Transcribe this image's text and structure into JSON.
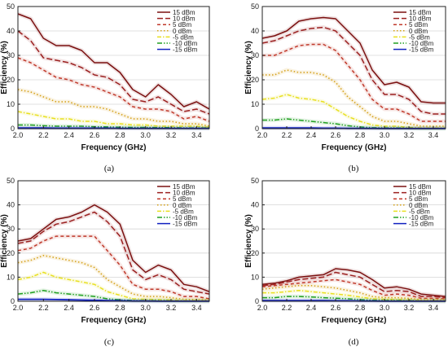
{
  "chart_data": [
    {
      "type": "line",
      "panel_label": "(a)",
      "xlabel": "Frequency (GHz)",
      "ylabel": "Efficiency (%)",
      "xlim": [
        2.0,
        3.5
      ],
      "ylim": [
        0,
        50
      ],
      "xticks": [
        "2.0",
        "2.2",
        "2.4",
        "2.6",
        "2.8",
        "3.0",
        "3.2",
        "3.4"
      ],
      "yticks": [
        "0",
        "10",
        "20",
        "30",
        "40",
        "50"
      ],
      "grid": true,
      "legend_position": "top-right",
      "x": [
        2.0,
        2.1,
        2.2,
        2.3,
        2.4,
        2.5,
        2.6,
        2.7,
        2.8,
        2.9,
        3.0,
        3.1,
        3.2,
        3.3,
        3.4,
        3.5
      ],
      "series": [
        {
          "name": "15 dBm",
          "color": "#7b1010",
          "dash": "solid",
          "values": [
            47,
            45,
            37,
            34,
            34,
            32,
            27,
            27,
            23,
            16,
            13,
            18,
            14,
            9,
            11,
            8
          ]
        },
        {
          "name": "10 dBm",
          "color": "#9b2020",
          "dash": "longdash",
          "values": [
            40,
            36,
            29,
            28,
            27,
            25,
            22,
            21,
            18,
            12,
            11,
            13,
            10,
            7,
            8,
            6
          ]
        },
        {
          "name": "5 dBm",
          "color": "#c0392b",
          "dash": "dash",
          "values": [
            29,
            27,
            24,
            21,
            20,
            18,
            17,
            15,
            13,
            9,
            8,
            8,
            7,
            4,
            5,
            3
          ]
        },
        {
          "name": "0 dBm",
          "color": "#d4a017",
          "dash": "dot",
          "values": [
            16,
            15,
            13,
            11,
            11,
            9,
            9,
            8,
            6,
            4,
            4,
            3,
            3,
            2,
            2,
            1
          ]
        },
        {
          "name": "-5 dBm",
          "color": "#e8e020",
          "dash": "dashdot",
          "values": [
            7,
            6,
            5,
            4,
            4,
            3,
            3,
            2,
            2,
            1.5,
            1.5,
            1,
            1,
            1,
            1,
            0.5
          ]
        },
        {
          "name": "-10 dBm",
          "color": "#20a020",
          "dash": "dashdotdot",
          "values": [
            1.5,
            1.5,
            1.2,
            1,
            1,
            1,
            0.8,
            0.7,
            0.6,
            0.5,
            0.5,
            0.4,
            0.4,
            0.3,
            0.3,
            0.3
          ]
        },
        {
          "name": "-15 dBm",
          "color": "#1020c0",
          "dash": "solid",
          "values": [
            0.3,
            0.3,
            0.3,
            0.2,
            0.2,
            0.2,
            0.2,
            0.2,
            0.1,
            0.1,
            0.1,
            0.1,
            0.1,
            0.1,
            0.1,
            0.1
          ]
        }
      ]
    },
    {
      "type": "line",
      "panel_label": "(b)",
      "xlabel": "Frequency (GHz)",
      "ylabel": "Efficiency (%)",
      "xlim": [
        2.0,
        3.5
      ],
      "ylim": [
        0,
        50
      ],
      "xticks": [
        "2.0",
        "2.2",
        "2.4",
        "2.6",
        "2.8",
        "3.0",
        "3.2",
        "3.4"
      ],
      "yticks": [
        "0",
        "10",
        "20",
        "30",
        "40",
        "50"
      ],
      "grid": true,
      "legend_position": "top-right",
      "x": [
        2.0,
        2.1,
        2.2,
        2.3,
        2.4,
        2.5,
        2.6,
        2.7,
        2.8,
        2.9,
        3.0,
        3.1,
        3.2,
        3.3,
        3.4,
        3.5
      ],
      "series": [
        {
          "name": "15 dBm",
          "color": "#7b1010",
          "dash": "solid",
          "values": [
            37,
            38,
            40,
            44,
            45,
            45.5,
            45,
            40,
            35,
            24,
            18,
            19,
            17,
            11,
            10.5,
            10.5
          ]
        },
        {
          "name": "10 dBm",
          "color": "#9b2020",
          "dash": "longdash",
          "values": [
            35,
            36,
            38,
            40,
            41,
            41.5,
            40,
            35,
            30,
            20,
            14,
            14,
            12,
            7,
            6,
            6
          ]
        },
        {
          "name": "5 dBm",
          "color": "#c0392b",
          "dash": "dash",
          "values": [
            30,
            30,
            32,
            34,
            34.5,
            34.5,
            32,
            26,
            20,
            12,
            8,
            8,
            6,
            3,
            3,
            3
          ]
        },
        {
          "name": "0 dBm",
          "color": "#d4a017",
          "dash": "dot",
          "values": [
            22,
            22,
            24,
            23,
            23,
            22,
            19,
            13,
            9,
            5,
            3,
            3,
            2,
            1,
            1,
            1
          ]
        },
        {
          "name": "-5 dBm",
          "color": "#e8e020",
          "dash": "dashdot",
          "values": [
            12,
            12.5,
            14,
            12.5,
            12,
            11,
            8,
            5,
            3,
            1.5,
            1,
            1,
            0.5,
            0.3,
            0.3,
            0.3
          ]
        },
        {
          "name": "-10 dBm",
          "color": "#20a020",
          "dash": "dashdotdot",
          "values": [
            3.5,
            3.5,
            4,
            3.5,
            3,
            2.5,
            2,
            1.2,
            0.7,
            0.4,
            0.3,
            0.3,
            0.2,
            0.1,
            0.1,
            0.1
          ]
        },
        {
          "name": "-15 dBm",
          "color": "#1020c0",
          "dash": "solid",
          "values": [
            0.3,
            0.3,
            0.3,
            0.3,
            0.3,
            0.2,
            0.2,
            0.1,
            0.1,
            0.1,
            0.05,
            0.05,
            0.05,
            0.05,
            0.05,
            0.05
          ]
        }
      ]
    },
    {
      "type": "line",
      "panel_label": "(c)",
      "xlabel": "Frequency (GHz)",
      "ylabel": "Efficiency (%)",
      "xlim": [
        2.0,
        3.5
      ],
      "ylim": [
        0,
        50
      ],
      "xticks": [
        "2.0",
        "2.2",
        "2.4",
        "2.6",
        "2.8",
        "3.0",
        "3.2",
        "3.4"
      ],
      "yticks": [
        "0",
        "10",
        "20",
        "30",
        "40",
        "50"
      ],
      "grid": true,
      "legend_position": "top-right",
      "x": [
        2.0,
        2.1,
        2.2,
        2.3,
        2.4,
        2.5,
        2.6,
        2.7,
        2.8,
        2.9,
        3.0,
        3.1,
        3.2,
        3.3,
        3.4,
        3.5
      ],
      "series": [
        {
          "name": "15 dBm",
          "color": "#7b1010",
          "dash": "solid",
          "values": [
            25,
            26,
            30,
            34,
            35,
            37,
            40,
            37,
            32,
            17,
            12,
            15,
            13,
            7,
            6,
            4
          ]
        },
        {
          "name": "10 dBm",
          "color": "#9b2020",
          "dash": "longdash",
          "values": [
            24,
            25,
            29,
            32,
            33,
            35,
            37,
            33,
            27,
            13,
            9,
            11,
            9,
            5,
            4,
            3
          ]
        },
        {
          "name": "5 dBm",
          "color": "#c0392b",
          "dash": "dash",
          "values": [
            21,
            22,
            25,
            27,
            27,
            27,
            27,
            21,
            15,
            7,
            5,
            5,
            4,
            2,
            2,
            1
          ]
        },
        {
          "name": "0 dBm",
          "color": "#d4a017",
          "dash": "dot",
          "values": [
            16,
            17,
            19,
            18,
            17,
            16,
            14,
            9,
            6,
            3,
            2,
            2,
            1.5,
            0.8,
            0.7,
            0.5
          ]
        },
        {
          "name": "-5 dBm",
          "color": "#e8e020",
          "dash": "dashdot",
          "values": [
            9,
            10,
            12,
            10,
            9,
            8,
            7,
            4,
            2.5,
            1,
            0.8,
            0.7,
            0.5,
            0.3,
            0.3,
            0.2
          ]
        },
        {
          "name": "-10 dBm",
          "color": "#20a020",
          "dash": "dashdotdot",
          "values": [
            3,
            3.5,
            4.5,
            3.5,
            3,
            2.5,
            2,
            1,
            0.6,
            0.3,
            0.2,
            0.2,
            0.1,
            0.1,
            0.1,
            0.1
          ]
        },
        {
          "name": "-15 dBm",
          "color": "#1020c0",
          "dash": "solid",
          "values": [
            0.8,
            0.8,
            0.8,
            0.7,
            0.6,
            0.5,
            0.4,
            0.3,
            0.2,
            0.1,
            0.1,
            0.05,
            0.05,
            0.05,
            0.05,
            0.05
          ]
        }
      ]
    },
    {
      "type": "line",
      "panel_label": "(d)",
      "xlabel": "Frequency (GHz)",
      "ylabel": "Efficiency (%)",
      "xlim": [
        2.0,
        3.5
      ],
      "ylim": [
        0,
        50
      ],
      "xticks": [
        "2.0",
        "2.2",
        "2.4",
        "2.6",
        "2.8",
        "3.0",
        "3.2",
        "3.4"
      ],
      "yticks": [
        "0",
        "10",
        "20",
        "30",
        "40",
        "50"
      ],
      "grid": true,
      "legend_position": "top-right",
      "x": [
        2.0,
        2.1,
        2.2,
        2.3,
        2.4,
        2.5,
        2.6,
        2.7,
        2.8,
        2.9,
        3.0,
        3.1,
        3.2,
        3.3,
        3.4,
        3.5
      ],
      "series": [
        {
          "name": "15 dBm",
          "color": "#7b1010",
          "dash": "solid",
          "values": [
            7,
            7.5,
            8.5,
            10,
            10.5,
            11,
            13.5,
            13,
            12,
            9,
            5.5,
            6,
            5,
            3,
            2.5,
            2
          ]
        },
        {
          "name": "10 dBm",
          "color": "#9b2020",
          "dash": "longdash",
          "values": [
            6.5,
            7,
            8,
            9,
            9.5,
            10,
            12,
            11,
            10,
            7,
            4,
            4.5,
            4,
            2,
            2,
            1.5
          ]
        },
        {
          "name": "5 dBm",
          "color": "#c0392b",
          "dash": "dash",
          "values": [
            6,
            6.5,
            7,
            7.5,
            8,
            8.5,
            9,
            8,
            7,
            4.5,
            2.5,
            3,
            2.5,
            1.2,
            1.2,
            1
          ]
        },
        {
          "name": "0 dBm",
          "color": "#d4a017",
          "dash": "dot",
          "values": [
            5,
            5.5,
            6,
            6.5,
            6.5,
            6,
            5.5,
            4.5,
            3.5,
            2,
            1.5,
            1.5,
            1.2,
            0.6,
            0.6,
            0.5
          ]
        },
        {
          "name": "-5 dBm",
          "color": "#e8e020",
          "dash": "dashdot",
          "values": [
            3.5,
            3.5,
            4,
            4.5,
            4,
            3.5,
            3,
            2.5,
            1.8,
            1,
            0.8,
            0.7,
            0.6,
            0.3,
            0.3,
            0.2
          ]
        },
        {
          "name": "-10 dBm",
          "color": "#20a020",
          "dash": "dashdotdot",
          "values": [
            1.5,
            1.5,
            2,
            2,
            1.8,
            1.5,
            1.3,
            1,
            0.7,
            0.4,
            0.3,
            0.3,
            0.2,
            0.1,
            0.1,
            0.1
          ]
        },
        {
          "name": "-15 dBm",
          "color": "#1020c0",
          "dash": "solid",
          "values": [
            0.3,
            0.3,
            0.3,
            0.3,
            0.3,
            0.3,
            0.2,
            0.2,
            0.1,
            0.1,
            0.05,
            0.05,
            0.05,
            0.05,
            0.05,
            0.05
          ]
        }
      ]
    }
  ]
}
